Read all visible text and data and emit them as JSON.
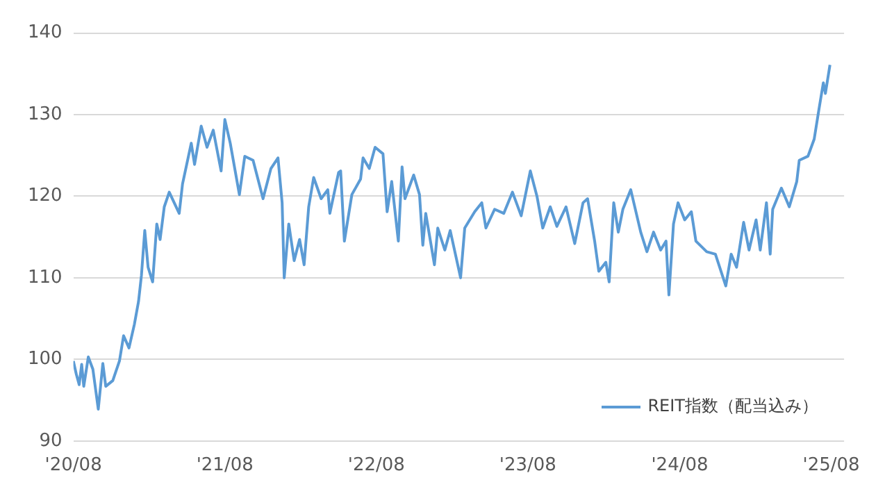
{
  "chart_data": {
    "type": "line",
    "legend": "bottom right",
    "grid": "y",
    "marker": "none",
    "line_style": "solid",
    "xlim": [
      "2020-08-01",
      "2025-09-01"
    ],
    "xticks": [
      {
        "value": "2020-08-01",
        "label": "'20/08"
      },
      {
        "value": "2021-08-01",
        "label": "'21/08"
      },
      {
        "value": "2022-08-01",
        "label": "'22/08"
      },
      {
        "value": "2023-08-01",
        "label": "'23/08"
      },
      {
        "value": "2024-08-01",
        "label": "'24/08"
      },
      {
        "value": "2025-08-01",
        "label": "'25/08"
      }
    ],
    "ylim": [
      90,
      140
    ],
    "yticks": [
      90,
      100,
      110,
      120,
      130,
      140
    ],
    "x": [
      "2020-08-01",
      "2020-08-08",
      "2020-08-15",
      "2020-08-21",
      "2020-08-26",
      "2020-09-06",
      "2020-09-17",
      "2020-09-30",
      "2020-10-11",
      "2020-10-18",
      "2020-11-04",
      "2020-11-20",
      "2020-11-30",
      "2020-12-13",
      "2020-12-26",
      "2021-01-05",
      "2021-01-12",
      "2021-01-20",
      "2021-01-28",
      "2021-02-08",
      "2021-02-18",
      "2021-02-26",
      "2021-03-08",
      "2021-03-20",
      "2021-04-13",
      "2021-04-21",
      "2021-05-12",
      "2021-05-20",
      "2021-06-05",
      "2021-06-19",
      "2021-07-04",
      "2021-07-23",
      "2021-08-01",
      "2021-08-14",
      "2021-09-05",
      "2021-09-18",
      "2021-10-08",
      "2021-11-01",
      "2021-11-20",
      "2021-12-07",
      "2021-12-17",
      "2021-12-22",
      "2022-01-02",
      "2022-01-15",
      "2022-01-28",
      "2022-02-08",
      "2022-02-19",
      "2022-03-03",
      "2022-03-21",
      "2022-04-06",
      "2022-04-11",
      "2022-05-02",
      "2022-05-07",
      "2022-05-16",
      "2022-06-03",
      "2022-06-24",
      "2022-06-30",
      "2022-07-15",
      "2022-07-29",
      "2022-08-17",
      "2022-08-27",
      "2022-09-07",
      "2022-09-23",
      "2022-10-02",
      "2022-10-09",
      "2022-10-30",
      "2022-11-13",
      "2022-11-21",
      "2022-11-28",
      "2022-12-19",
      "2022-12-27",
      "2023-01-13",
      "2023-01-26",
      "2023-02-20",
      "2023-03-02",
      "2023-03-26",
      "2023-04-12",
      "2023-04-22",
      "2023-05-13",
      "2023-06-04",
      "2023-06-25",
      "2023-07-16",
      "2023-08-07",
      "2023-08-23",
      "2023-09-06",
      "2023-09-24",
      "2023-10-10",
      "2023-11-01",
      "2023-11-22",
      "2023-12-12",
      "2023-12-23",
      "2024-01-09",
      "2024-01-19",
      "2024-02-05",
      "2024-02-13",
      "2024-02-24",
      "2024-03-06",
      "2024-03-17",
      "2024-04-05",
      "2024-04-29",
      "2024-05-14",
      "2024-05-30",
      "2024-06-16",
      "2024-06-29",
      "2024-07-06",
      "2024-07-17",
      "2024-07-28",
      "2024-08-13",
      "2024-08-29",
      "2024-09-09",
      "2024-10-05",
      "2024-10-26",
      "2024-11-20",
      "2024-12-03",
      "2024-12-16",
      "2025-01-02",
      "2025-01-15",
      "2025-02-01",
      "2025-02-11",
      "2025-02-26",
      "2025-03-07",
      "2025-03-13",
      "2025-04-03",
      "2025-04-22",
      "2025-05-10",
      "2025-05-16",
      "2025-06-06",
      "2025-06-21",
      "2025-07-02",
      "2025-07-13",
      "2025-07-18",
      "2025-07-29"
    ],
    "series": [
      {
        "name": "REIT指数（配当込み）",
        "color": "#5b9bd5",
        "values": [
          99.8,
          98.2,
          96.9,
          99.4,
          96.7,
          100.3,
          98.8,
          93.9,
          99.5,
          96.7,
          97.4,
          99.8,
          102.9,
          101.4,
          104.3,
          107.1,
          110.3,
          115.8,
          111.3,
          109.5,
          116.6,
          114.7,
          118.7,
          120.5,
          117.9,
          121.5,
          126.5,
          123.9,
          128.6,
          126.0,
          128.1,
          123.1,
          129.4,
          126.5,
          120.2,
          124.9,
          124.4,
          119.7,
          123.4,
          124.7,
          119.2,
          110.0,
          116.6,
          112.1,
          114.7,
          111.6,
          118.7,
          122.3,
          119.7,
          120.8,
          117.9,
          122.9,
          123.1,
          114.5,
          120.2,
          122.1,
          124.7,
          123.4,
          126.0,
          125.2,
          118.1,
          121.8,
          114.5,
          123.6,
          119.7,
          122.6,
          120.2,
          114.0,
          117.9,
          111.6,
          116.1,
          113.4,
          115.8,
          110.0,
          116.1,
          118.1,
          119.2,
          116.1,
          118.4,
          117.9,
          120.5,
          117.6,
          123.1,
          120.0,
          116.1,
          118.7,
          116.3,
          118.7,
          114.2,
          119.2,
          119.7,
          114.5,
          110.8,
          111.9,
          109.5,
          119.2,
          115.6,
          118.4,
          120.8,
          115.6,
          113.2,
          115.6,
          113.4,
          114.5,
          107.9,
          116.6,
          119.2,
          117.1,
          118.1,
          114.5,
          113.2,
          112.9,
          109.0,
          112.9,
          111.3,
          116.8,
          113.4,
          117.1,
          113.4,
          119.2,
          112.9,
          118.4,
          121.0,
          118.7,
          121.8,
          124.4,
          124.9,
          127.0,
          130.5,
          133.9,
          132.6,
          136.1
        ]
      }
    ]
  }
}
